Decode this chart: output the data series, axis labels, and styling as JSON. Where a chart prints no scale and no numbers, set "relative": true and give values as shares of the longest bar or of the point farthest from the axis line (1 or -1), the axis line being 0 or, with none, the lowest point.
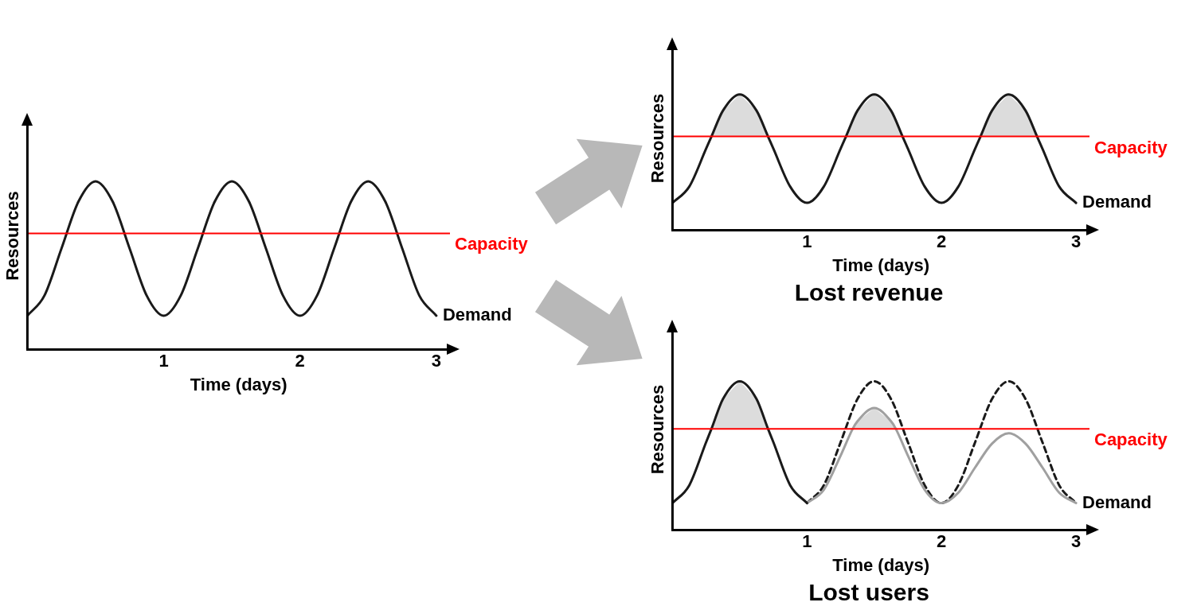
{
  "chart_data": [
    {
      "type": "line",
      "xlabel": "Time (days)",
      "ylabel": "Resources",
      "relative": true,
      "xlim": [
        0,
        3.1
      ],
      "xticks": [
        1,
        2,
        3
      ],
      "grid": false,
      "legend": false,
      "marker": "none",
      "ref_lines": [
        {
          "axis": "y",
          "value": 0.69,
          "label": "Capacity",
          "color": "#ff0000"
        }
      ],
      "series": [
        {
          "name": "Demand",
          "color": "#1a1a1a",
          "x": [
            0,
            0.125,
            0.25,
            0.375,
            0.5,
            0.625,
            0.75,
            0.875,
            1,
            1.125,
            1.25,
            1.375,
            1.5,
            1.625,
            1.75,
            1.875,
            2,
            2.125,
            2.25,
            2.375,
            2.5,
            2.625,
            2.75,
            2.875,
            3
          ],
          "values": [
            0.2,
            0.32,
            0.6,
            0.88,
            1,
            0.88,
            0.6,
            0.32,
            0.2,
            0.32,
            0.6,
            0.88,
            1,
            0.88,
            0.6,
            0.32,
            0.2,
            0.32,
            0.6,
            0.88,
            1,
            0.88,
            0.6,
            0.32,
            0.2
          ]
        }
      ]
    },
    {
      "type": "line",
      "title": "Lost revenue",
      "xlabel": "Time (days)",
      "ylabel": "Resources",
      "relative": true,
      "xlim": [
        0,
        3.1
      ],
      "xticks": [
        1,
        2,
        3
      ],
      "grid": false,
      "legend": false,
      "marker": "none",
      "ref_lines": [
        {
          "axis": "y",
          "value": 0.69,
          "label": "Capacity",
          "color": "#ff0000"
        }
      ],
      "series": [
        {
          "name": "Demand",
          "color": "#1a1a1a",
          "x": [
            0,
            0.125,
            0.25,
            0.29,
            0.375,
            0.5,
            0.625,
            0.71,
            0.75,
            0.875,
            1,
            1.125,
            1.25,
            1.29,
            1.375,
            1.5,
            1.625,
            1.71,
            1.75,
            1.875,
            2,
            2.125,
            2.25,
            2.29,
            2.375,
            2.5,
            2.625,
            2.71,
            2.75,
            2.875,
            3
          ],
          "values": [
            0.2,
            0.32,
            0.6,
            0.69,
            0.88,
            1,
            0.88,
            0.69,
            0.6,
            0.32,
            0.2,
            0.32,
            0.6,
            0.69,
            0.88,
            1,
            0.88,
            0.69,
            0.6,
            0.32,
            0.2,
            0.32,
            0.6,
            0.69,
            0.88,
            1,
            0.88,
            0.69,
            0.6,
            0.32,
            0.2
          ],
          "lower": [
            null,
            null,
            null,
            0.69,
            0.69,
            0.69,
            0.69,
            0.69,
            null,
            null,
            null,
            null,
            null,
            0.69,
            0.69,
            0.69,
            0.69,
            0.69,
            null,
            null,
            null,
            null,
            null,
            0.69,
            0.69,
            0.69,
            0.69,
            0.69,
            null,
            null,
            null
          ],
          "upper": [
            null,
            null,
            null,
            0.69,
            0.88,
            1,
            0.88,
            0.69,
            null,
            null,
            null,
            null,
            null,
            0.69,
            0.88,
            1,
            0.88,
            0.69,
            null,
            null,
            null,
            null,
            null,
            0.69,
            0.88,
            1,
            0.88,
            0.69,
            null,
            null,
            null
          ]
        }
      ]
    },
    {
      "type": "line",
      "title": "Lost users",
      "xlabel": "Time (days)",
      "ylabel": "Resources",
      "relative": true,
      "xlim": [
        0,
        3.1
      ],
      "xticks": [
        1,
        2,
        3
      ],
      "grid": false,
      "legend": false,
      "marker": "none",
      "ref_lines": [
        {
          "axis": "y",
          "value": 0.68,
          "label": "Capacity",
          "color": "#ff0000"
        }
      ],
      "series": [
        {
          "color": "#1a1a1a",
          "line_style": "dashed",
          "x": [
            1,
            1.125,
            1.25,
            1.375,
            1.5,
            1.625,
            1.75,
            1.875,
            2,
            2.125,
            2.25,
            2.375,
            2.5,
            2.625,
            2.75,
            2.875,
            3
          ],
          "values": [
            0.18,
            0.3,
            0.59,
            0.88,
            1,
            0.88,
            0.59,
            0.3,
            0.18,
            0.3,
            0.59,
            0.88,
            1,
            0.88,
            0.59,
            0.3,
            0.18
          ]
        },
        {
          "name": "Demand",
          "color": "#a0a0a0",
          "x": [
            1,
            1.125,
            1.25,
            1.34,
            1.375,
            1.5,
            1.625,
            1.66,
            1.75,
            1.875,
            2,
            2.125,
            2.25,
            2.375,
            2.5,
            2.625,
            2.75,
            2.875,
            3
          ],
          "values": [
            0.18,
            0.27,
            0.5,
            0.68,
            0.73,
            0.82,
            0.73,
            0.68,
            0.5,
            0.27,
            0.18,
            0.25,
            0.42,
            0.58,
            0.65,
            0.58,
            0.42,
            0.25,
            0.18
          ],
          "lower": [
            null,
            null,
            null,
            0.68,
            0.68,
            0.68,
            0.68,
            0.68,
            null,
            null,
            null,
            null,
            null,
            null,
            null,
            null,
            null,
            null,
            null
          ],
          "upper": [
            null,
            null,
            null,
            0.68,
            0.73,
            0.82,
            0.73,
            0.68,
            null,
            null,
            null,
            null,
            null,
            null,
            null,
            null,
            null,
            null,
            null
          ]
        },
        {
          "color": "#1a1a1a",
          "x": [
            0,
            0.125,
            0.25,
            0.29,
            0.375,
            0.5,
            0.625,
            0.71,
            0.75,
            0.875,
            1
          ],
          "values": [
            0.18,
            0.3,
            0.59,
            0.68,
            0.88,
            1,
            0.88,
            0.68,
            0.59,
            0.3,
            0.18
          ],
          "lower": [
            null,
            null,
            null,
            0.68,
            0.68,
            0.68,
            0.68,
            0.68,
            null,
            null,
            null
          ],
          "upper": [
            null,
            null,
            null,
            0.68,
            0.88,
            1,
            0.88,
            0.68,
            null,
            null,
            null
          ]
        }
      ]
    }
  ]
}
